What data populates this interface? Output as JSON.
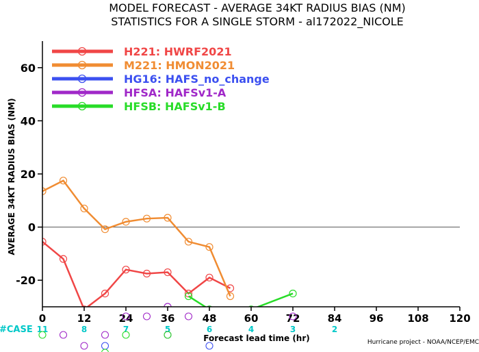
{
  "chart_data": {
    "type": "line",
    "title": "MODEL FORECAST - AVERAGE 34KT RADIUS BIAS (NM)",
    "subtitle": "STATISTICS FOR A SINGLE STORM - al172022_NICOLE",
    "ylabel": "AVERAGE 34KT RADIUS BIAS (NM)",
    "xlabel": "Forecast lead time (hr)",
    "credit": "Hurricane project - NOAA/NCEP/EMC",
    "xlim": [
      0,
      120
    ],
    "ylim": [
      -30,
      70
    ],
    "xticks": [
      0,
      12,
      24,
      36,
      48,
      60,
      72,
      84,
      96,
      108,
      120
    ],
    "yticks": [
      -20,
      0,
      20,
      40,
      60
    ],
    "zero_line": true,
    "legend_position": "top-left",
    "series": [
      {
        "code": "H221",
        "name": "HWRF2021",
        "color": "#f04646",
        "x": [
          0,
          6,
          12,
          18,
          24,
          30,
          36,
          42,
          48,
          54
        ],
        "y": [
          -5.5,
          -12,
          -31,
          -25,
          -16,
          -17.5,
          -17,
          -25,
          -19,
          -23
        ]
      },
      {
        "code": "M221",
        "name": "HMON2021",
        "color": "#f08c32",
        "x": [
          0,
          6,
          12,
          18,
          24,
          30,
          36,
          42,
          48,
          54
        ],
        "y": [
          13.5,
          17.5,
          7,
          -0.8,
          2,
          3.2,
          3.5,
          -5.5,
          -7.5,
          -26
        ]
      },
      {
        "code": "HG16",
        "name": "HAFS_no_change",
        "color": "#3c50f0",
        "x": [],
        "y": []
      },
      {
        "code": "HFSA",
        "name": "HAFSv1-A",
        "color": "#a028c8",
        "x": [
          36,
          42,
          48
        ],
        "y": [
          -30,
          -32,
          -31
        ]
      },
      {
        "code": "HFSB",
        "name": "HAFSv1-B",
        "color": "#28dc28",
        "x": [
          42,
          48,
          60,
          72
        ],
        "y": [
          -26,
          -31,
          -31,
          -25
        ]
      }
    ],
    "case_label": "#CASE",
    "case_counts": [
      {
        "x": 0,
        "label": "11"
      },
      {
        "x": 12,
        "label": "8"
      },
      {
        "x": 24,
        "label": "7"
      },
      {
        "x": 36,
        "label": "5"
      },
      {
        "x": 48,
        "label": "6"
      },
      {
        "x": 60,
        "label": "4"
      },
      {
        "x": 72,
        "label": "3"
      },
      {
        "x": 84,
        "label": "2"
      }
    ],
    "case_markers": [
      {
        "x": 0,
        "row": 1,
        "color": "#28dc28"
      },
      {
        "x": 6,
        "row": 1,
        "color": "#a028c8"
      },
      {
        "x": 12,
        "row": 2,
        "color": "#a028c8"
      },
      {
        "x": 18,
        "row": 1,
        "color": "#a028c8"
      },
      {
        "x": 18,
        "row": 2,
        "color": "#3c50f0"
      },
      {
        "x": 18,
        "row": 3,
        "color": "#28dc28"
      },
      {
        "x": 24,
        "row": 0,
        "color": "#a028c8"
      },
      {
        "x": 24,
        "row": 1,
        "color": "#28dc28"
      },
      {
        "x": 30,
        "row": 0,
        "color": "#a028c8"
      },
      {
        "x": 36,
        "row": 1,
        "color": "#a028c8"
      },
      {
        "x": 36,
        "row": 1,
        "color": "#28dc28"
      },
      {
        "x": 42,
        "row": 0,
        "color": "#a028c8"
      },
      {
        "x": 48,
        "row": 2,
        "color": "#3c50f0"
      },
      {
        "x": 72,
        "row": 0,
        "color": "#a028c8"
      }
    ]
  }
}
